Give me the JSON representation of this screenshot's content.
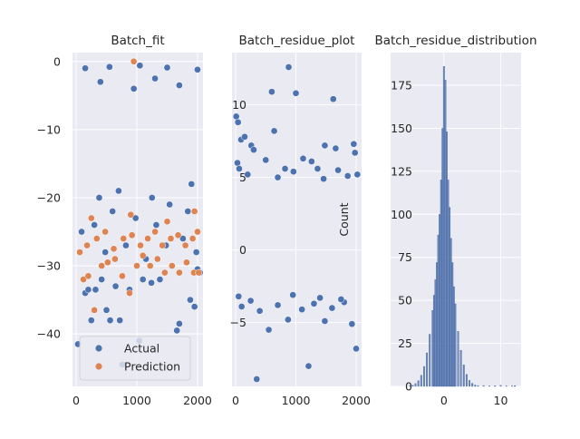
{
  "chart_data": [
    {
      "type": "scatter",
      "title": "Batch_fit",
      "xlabel": "",
      "ylabel": "",
      "xlim": [
        -60,
        2090
      ],
      "ylim": [
        -47.7,
        1.3
      ],
      "xticks": [
        0,
        1000,
        2000
      ],
      "yticks": [
        0,
        -10,
        -20,
        -30,
        -40
      ],
      "grid": true,
      "legend": {
        "position": "lower-left",
        "entries": [
          "Actual",
          "Prediction"
        ]
      },
      "series": [
        {
          "name": "Actual",
          "color": "#4c72b0",
          "points": [
            [
              30,
              -41.5
            ],
            [
              150,
              -34
            ],
            [
              200,
              -33.5
            ],
            [
              250,
              -38
            ],
            [
              320,
              -33.5
            ],
            [
              420,
              -32
            ],
            [
              500,
              -36.5
            ],
            [
              560,
              -38
            ],
            [
              650,
              -33
            ],
            [
              720,
              -38
            ],
            [
              760,
              -44.5
            ],
            [
              880,
              -33.5
            ],
            [
              1040,
              -41
            ],
            [
              1100,
              -32
            ],
            [
              1240,
              -32.5
            ],
            [
              1380,
              -32
            ],
            [
              1660,
              -39.5
            ],
            [
              1700,
              -38.5
            ],
            [
              1880,
              -35
            ],
            [
              1950,
              -36
            ],
            [
              2000,
              -30.5
            ],
            [
              2040,
              -31
            ],
            [
              90,
              -25
            ],
            [
              300,
              -24
            ],
            [
              480,
              -28
            ],
            [
              600,
              -22
            ],
            [
              820,
              -27
            ],
            [
              980,
              -23
            ],
            [
              1150,
              -29
            ],
            [
              1320,
              -24
            ],
            [
              1480,
              -27
            ],
            [
              1540,
              -21
            ],
            [
              1760,
              -26
            ],
            [
              1840,
              -22
            ],
            [
              1980,
              -28
            ],
            [
              380,
              -20
            ],
            [
              700,
              -19
            ],
            [
              1250,
              -20
            ],
            [
              1900,
              -18
            ],
            [
              150,
              -1
            ],
            [
              550,
              -0.8
            ],
            [
              1050,
              -0.6
            ],
            [
              1500,
              -0.9
            ],
            [
              2000,
              -1.2
            ],
            [
              400,
              -3
            ],
            [
              1300,
              -2.5
            ],
            [
              1700,
              -3.5
            ],
            [
              950,
              -4
            ]
          ]
        },
        {
          "name": "Prediction",
          "color": "#dd8452",
          "points": [
            [
              60,
              -28
            ],
            [
              120,
              -32
            ],
            [
              200,
              -31.5
            ],
            [
              300,
              -36.5
            ],
            [
              420,
              -30
            ],
            [
              520,
              -29.5
            ],
            [
              640,
              -29
            ],
            [
              760,
              -31.5
            ],
            [
              880,
              -34
            ],
            [
              1000,
              -30
            ],
            [
              1100,
              -28.5
            ],
            [
              1220,
              -30
            ],
            [
              1340,
              -29
            ],
            [
              1460,
              -31
            ],
            [
              1580,
              -30
            ],
            [
              1700,
              -31
            ],
            [
              1820,
              -29.5
            ],
            [
              1940,
              -31
            ],
            [
              2020,
              -31
            ],
            [
              950,
              0
            ],
            [
              180,
              -27
            ],
            [
              340,
              -26
            ],
            [
              480,
              -25
            ],
            [
              620,
              -27.5
            ],
            [
              780,
              -26
            ],
            [
              920,
              -25.5
            ],
            [
              1060,
              -27
            ],
            [
              1180,
              -26
            ],
            [
              1300,
              -25
            ],
            [
              1420,
              -27
            ],
            [
              1560,
              -26
            ],
            [
              1680,
              -25.5
            ],
            [
              1800,
              -27
            ],
            [
              1920,
              -26
            ],
            [
              2000,
              -25
            ],
            [
              250,
              -23
            ],
            [
              900,
              -22.5
            ],
            [
              1500,
              -23.5
            ],
            [
              1950,
              -22
            ]
          ]
        }
      ]
    },
    {
      "type": "scatter",
      "title": "Batch_residue_plot",
      "xlabel": "",
      "ylabel": "",
      "xlim": [
        -60,
        2090
      ],
      "ylim": [
        -9.4,
        13.6
      ],
      "xticks": [
        0,
        1000,
        2000
      ],
      "yticks": [
        10,
        5,
        0,
        -5
      ],
      "grid": true,
      "series": [
        {
          "name": "",
          "color": "#4c72b0",
          "points": [
            [
              10,
              9.2
            ],
            [
              40,
              8.8
            ],
            [
              90,
              7.6
            ],
            [
              150,
              7.8
            ],
            [
              260,
              7.2
            ],
            [
              300,
              6.9
            ],
            [
              600,
              10.9
            ],
            [
              640,
              8.2
            ],
            [
              880,
              12.6
            ],
            [
              1000,
              10.8
            ],
            [
              1120,
              6.3
            ],
            [
              1260,
              6.1
            ],
            [
              1480,
              7.2
            ],
            [
              1620,
              10.4
            ],
            [
              1660,
              7.0
            ],
            [
              1960,
              7.3
            ],
            [
              1980,
              6.7
            ],
            [
              30,
              6
            ],
            [
              60,
              5.6
            ],
            [
              200,
              5.2
            ],
            [
              500,
              6.2
            ],
            [
              700,
              5.0
            ],
            [
              820,
              5.6
            ],
            [
              960,
              5.4
            ],
            [
              1360,
              5.6
            ],
            [
              1460,
              4.9
            ],
            [
              1700,
              5.5
            ],
            [
              1860,
              5.1
            ],
            [
              2020,
              5.2
            ],
            [
              350,
              -8.9
            ],
            [
              1210,
              -8.0
            ],
            [
              2000,
              -6.8
            ],
            [
              550,
              -5.5
            ],
            [
              870,
              -4.8
            ],
            [
              1480,
              -4.9
            ],
            [
              1930,
              -5.1
            ],
            [
              100,
              -3.9
            ],
            [
              400,
              -4.2
            ],
            [
              700,
              -3.8
            ],
            [
              1100,
              -4.1
            ],
            [
              1300,
              -3.7
            ],
            [
              1600,
              -4.0
            ],
            [
              1800,
              -3.6
            ],
            [
              50,
              -3.2
            ],
            [
              250,
              -3.5
            ],
            [
              950,
              -3.1
            ],
            [
              1400,
              -3.3
            ],
            [
              1750,
              -3.4
            ]
          ]
        }
      ]
    },
    {
      "type": "bar",
      "title": "Batch_residue_distribution",
      "xlabel": "",
      "ylabel": "Count",
      "xlim": [
        -9.4,
        13.6
      ],
      "ylim": [
        0,
        194
      ],
      "xticks": [
        0,
        10
      ],
      "yticks": [
        0,
        25,
        50,
        75,
        100,
        125,
        150,
        175
      ],
      "grid": true,
      "color": "#4c72b0",
      "bins": [
        [
          -6.0,
          0.3
        ],
        [
          -5.5,
          0.7
        ],
        [
          -5.0,
          1.6
        ],
        [
          -4.5,
          3.3
        ],
        [
          -4.0,
          6.5
        ],
        [
          -3.5,
          11.6
        ],
        [
          -3.0,
          19.5
        ],
        [
          -2.5,
          30.3
        ],
        [
          -2.0,
          44.2
        ],
        [
          -1.75,
          53
        ],
        [
          -1.5,
          62
        ],
        [
          -1.25,
          72
        ],
        [
          -1.0,
          88
        ],
        [
          -0.75,
          100
        ],
        [
          -0.5,
          120
        ],
        [
          -0.25,
          150
        ],
        [
          0.0,
          186
        ],
        [
          0.25,
          178
        ],
        [
          0.5,
          148
        ],
        [
          0.75,
          120
        ],
        [
          1.0,
          104
        ],
        [
          1.25,
          86
        ],
        [
          1.5,
          72
        ],
        [
          1.75,
          58
        ],
        [
          2.0,
          48
        ],
        [
          2.5,
          32
        ],
        [
          3.0,
          21
        ],
        [
          3.5,
          12.5
        ],
        [
          4.0,
          7
        ],
        [
          4.5,
          3.5
        ],
        [
          5.0,
          1.8
        ],
        [
          5.5,
          0.8
        ],
        [
          6.0,
          0.4
        ],
        [
          7.0,
          0.5
        ],
        [
          8.0,
          0.3
        ],
        [
          9.0,
          0.4
        ],
        [
          10.0,
          0.6
        ],
        [
          11.0,
          0.3
        ],
        [
          12.0,
          0.3
        ],
        [
          12.5,
          0.4
        ]
      ]
    }
  ]
}
